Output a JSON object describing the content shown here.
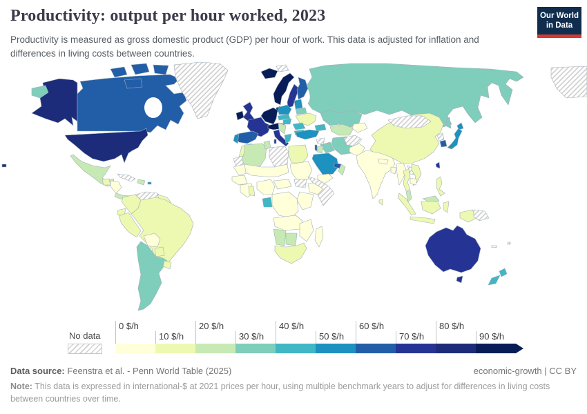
{
  "header": {
    "title": "Productivity: output per hour worked, 2023",
    "subtitle": "Productivity is measured as gross domestic product (GDP) per hour of work. This data is adjusted for inflation and differences in living costs between countries.",
    "logo": {
      "line1": "Our World",
      "line2": "in Data",
      "bg": "#102d4e",
      "accent": "#d13b32"
    }
  },
  "legend": {
    "no_data_label": "No data",
    "unit": "$/h",
    "ticks": [
      "0 $/h",
      "10 $/h",
      "20 $/h",
      "30 $/h",
      "40 $/h",
      "50 $/h",
      "60 $/h",
      "70 $/h",
      "80 $/h",
      "90 $/h"
    ],
    "bin_colors": [
      "#ffffd9",
      "#edf8b1",
      "#c7e9b4",
      "#7fcdbb",
      "#41b6c4",
      "#1d91c0",
      "#225ea8",
      "#253494",
      "#1c2c7a",
      "#081d58"
    ]
  },
  "footer": {
    "source_label": "Data source:",
    "source_text": "Feenstra et al. - Penn World Table (2025)",
    "right_text": "economic-growth | CC BY",
    "note_label": "Note:",
    "note_text": "This data is expressed in international-$ at 2021 prices per hour, using multiple benchmark years to adjust for differences in living costs between countries over time."
  },
  "chart_data": {
    "type": "heatmap",
    "map_type": "world-choropleth",
    "title": "Productivity: output per hour worked, 2023",
    "year": 2023,
    "unit": "international-$ per hour worked (2021 prices)",
    "legend_position": "bottom",
    "bins": [
      {
        "range": "0-10",
        "color": "#ffffd9"
      },
      {
        "range": "10-20",
        "color": "#edf8b1"
      },
      {
        "range": "20-30",
        "color": "#c7e9b4"
      },
      {
        "range": "30-40",
        "color": "#7fcdbb"
      },
      {
        "range": "40-50",
        "color": "#41b6c4"
      },
      {
        "range": "50-60",
        "color": "#1d91c0"
      },
      {
        "range": "60-70",
        "color": "#225ea8"
      },
      {
        "range": "70-80",
        "color": "#253494"
      },
      {
        "range": "80-90",
        "color": "#1c2c7a"
      },
      {
        "range": "90+",
        "color": "#081d58"
      }
    ],
    "country_bins": {
      "United States": "80-90",
      "Canada": "60-70",
      "Mexico": "20-30",
      "Guatemala": "10-20",
      "Honduras": "0-10",
      "Nicaragua": "0-10",
      "Costa Rica": "20-30",
      "Panama": "20-30",
      "Dominican Republic": "20-30",
      "Puerto Rico": "50-60",
      "Colombia": "10-20",
      "Ecuador": "10-20",
      "Peru": "10-20",
      "Brazil": "10-20",
      "Bolivia": "0-10",
      "Paraguay": "10-20",
      "Uruguay": "10-20",
      "Chile": "30-40",
      "Argentina": "30-40",
      "Guyana": "10-20",
      "Iceland": "90+",
      "Norway": "90+",
      "Sweden": "70-80",
      "Finland": "60-70",
      "Denmark": "90+",
      "United Kingdom": "70-80",
      "Ireland": "90+",
      "Germany": "90+",
      "Netherlands": "90+",
      "Belgium": "90+",
      "France": "70-80",
      "Switzerland": "90+",
      "Austria": "90+",
      "Spain": "60-70",
      "Portugal": "50-60",
      "Italy": "70-80",
      "Poland": "50-60",
      "Czechia": "40-50",
      "Slovakia": "40-50",
      "Hungary": "40-50",
      "Croatia": "40-50",
      "Serbia": "20-30",
      "Romania": "40-50",
      "Bulgaria": "40-50",
      "Greece": "40-50",
      "Baltic states": "50-60",
      "Belarus": "30-40",
      "Ukraine": "10-20",
      "Russia": "30-40",
      "Kazakhstan": "30-40",
      "Uzbekistan": "20-30",
      "Turkmenistan": "20-30",
      "Kyrgyzstan": "0-10",
      "Georgia/Azerbaijan": "40-50",
      "Turkey": "50-60",
      "Iraq": "30-40",
      "Iran": "30-40",
      "Israel": "60-70",
      "Jordan": "20-30",
      "Saudi Arabia": "50-60",
      "United Arab Emirates": "60-70",
      "Oman": "20-30",
      "Yemen": "0-10",
      "Pakistan": "0-10",
      "India": "0-10",
      "Sri Lanka": "10-20",
      "Bangladesh": "0-10",
      "Nepal": "0-10",
      "China": "10-20",
      "South Korea": "60-70",
      "Japan": "50-60",
      "Taiwan": "70-80",
      "Myanmar": "0-10",
      "Thailand": "10-20",
      "Vietnam": "10-20",
      "Cambodia": "0-10",
      "Malaysia": "20-30",
      "Indonesia": "10-20",
      "Philippines": "10-20",
      "Australia": "70-80",
      "New Zealand": "40-50",
      "Morocco": "10-20",
      "Algeria": "20-30",
      "Tunisia": "20-30",
      "Egypt": "10-20",
      "Mauritania": "0-10",
      "Mali": "0-10",
      "Niger": "0-10",
      "Chad": "0-10",
      "Sudan": "0-10",
      "Ethiopia": "0-10",
      "Kenya": "0-10",
      "Tanzania": "0-10",
      "Nigeria": "0-10",
      "Ghana": "10-20",
      "Gabon": "40-50",
      "DR Congo": "0-10",
      "Angola": "0-10",
      "Zambia": "0-10",
      "Mozambique": "0-10",
      "Namibia": "20-30",
      "Botswana": "20-30",
      "South Africa": "10-20",
      "Madagascar": "0-10"
    },
    "no_data_countries": [
      "Greenland",
      "Cuba",
      "Venezuela",
      "Western Sahara",
      "Libya",
      "South Sudan",
      "Somalia",
      "Syria",
      "Afghanistan",
      "Mongolia",
      "Laos",
      "North Korea",
      "Papua New Guinea",
      "New Caledonia",
      "Fiji",
      "Svalbard"
    ]
  },
  "map": {
    "border_color": "#a2afb9",
    "region_fills": {
      "alaska": "#1c2c7a",
      "alaska-panhandle": "#1c2c7a",
      "usa": "#1c2c7a",
      "hawaii": "#1c2c7a",
      "canada": "#225ea8",
      "arctic-1": "#225ea8",
      "arctic-2": "#225ea8",
      "arctic-3": "#225ea8",
      "arctic-4": "#225ea8",
      "greenland": "no-data",
      "svalbard": "no-data",
      "ne-siberia-patch": "no-data",
      "mexico": "#c7e9b4",
      "guatemala": "#edf8b1",
      "honduras-nicaragua": "#ffffd9",
      "costa-rica-panama": "#c7e9b4",
      "cuba": "no-data",
      "hispaniola": "#c7e9b4",
      "puerto-rico": "#1d91c0",
      "colombia": "#edf8b1",
      "venezuela": "no-data",
      "guyanas": "#edf8b1",
      "ecuador": "#edf8b1",
      "peru": "#edf8b1",
      "brazil": "#edf8b1",
      "bolivia": "#ffffd9",
      "paraguay": "#edf8b1",
      "uruguay": "#edf8b1",
      "chile-argentina": "#7fcdbb",
      "iceland": "#081d58",
      "norway": "#081d58",
      "sweden": "#253494",
      "finland": "#225ea8",
      "denmark": "#081d58",
      "uk": "#253494",
      "ireland": "#081d58",
      "germany-benelux": "#081d58",
      "france": "#253494",
      "alps": "#081d58",
      "spain": "#225ea8",
      "portugal": "#1d91c0",
      "italy": "#253494",
      "sicily": "#253494",
      "sardinia": "#253494",
      "poland": "#1d91c0",
      "czech-slovakia": "#41b6c4",
      "hungary": "#41b6c4",
      "balkans": "#c7e9b4",
      "greece": "#41b6c4",
      "baltics": "#1d91c0",
      "belarus": "#7fcdbb",
      "ukraine": "#edf8b1",
      "romania": "#41b6c4",
      "bulgaria": "#41b6c4",
      "russia": "#7fcdbb",
      "russia-wrap": "#7fcdbb",
      "sakhalin": "#7fcdbb",
      "kazakhstan": "#7fcdbb",
      "caucasus": "#41b6c4",
      "uzbek-turkmen": "#c7e9b4",
      "kyrgyz-tajik": "#ffffd9",
      "turkey": "#1d91c0",
      "syria": "no-data",
      "iraq": "#7fcdbb",
      "iran": "#7fcdbb",
      "israel": "#225ea8",
      "jordan": "#c7e9b4",
      "saudi": "#1d91c0",
      "uae-qatar": "#225ea8",
      "oman": "#c7e9b4",
      "yemen": "#ffffd9",
      "afghanistan": "no-data",
      "pakistan": "#ffffd9",
      "india": "#ffffd9",
      "nepal": "#ffffd9",
      "bangladesh": "#ffffd9",
      "sri-lanka": "#edf8b1",
      "china": "#edf8b1",
      "mongolia": "no-data",
      "north-korea": "no-data",
      "south-korea": "#225ea8",
      "japan": "#1d91c0",
      "hokkaido": "#1d91c0",
      "taiwan": "#253494",
      "myanmar": "#ffffd9",
      "thailand": "#edf8b1",
      "laos": "no-data",
      "vietnam": "#edf8b1",
      "cambodia": "#ffffd9",
      "malaysia": "#c7e9b4",
      "borneo-malaysia": "#c7e9b4",
      "sumatra": "#edf8b1",
      "java": "#edf8b1",
      "borneo-indonesia": "#edf8b1",
      "sulawesi": "#edf8b1",
      "papua-indonesia": "#edf8b1",
      "png": "no-data",
      "philippines": "#edf8b1",
      "morocco": "#edf8b1",
      "western-sahara": "no-data",
      "algeria": "#c7e9b4",
      "tunisia": "#c7e9b4",
      "libya": "no-data",
      "egypt": "#edf8b1",
      "mauritania": "#ffffd9",
      "sahel": "#ffffd9",
      "sudan": "#ffffd9",
      "south-sudan": "no-data",
      "senegal-guinea": "#ffffd9",
      "west-africa": "#ffffd9",
      "ghana": "#edf8b1",
      "nigeria": "#ffffd9",
      "car": "#ffffd9",
      "ethiopia": "#ffffd9",
      "horn": "no-data",
      "east-africa": "#ffffd9",
      "gabon": "#41b6c4",
      "drc": "#ffffd9",
      "angola-zambia": "#ffffd9",
      "mozambique": "#ffffd9",
      "namibia": "#c7e9b4",
      "botswana": "#c7e9b4",
      "south-africa": "#edf8b1",
      "madagascar": "#ffffd9",
      "australia": "#253494",
      "tasmania": "#253494",
      "new-zealand-north": "#41b6c4",
      "new-zealand-south": "#41b6c4",
      "fiji": "no-data",
      "new-caledonia": "no-data"
    }
  }
}
